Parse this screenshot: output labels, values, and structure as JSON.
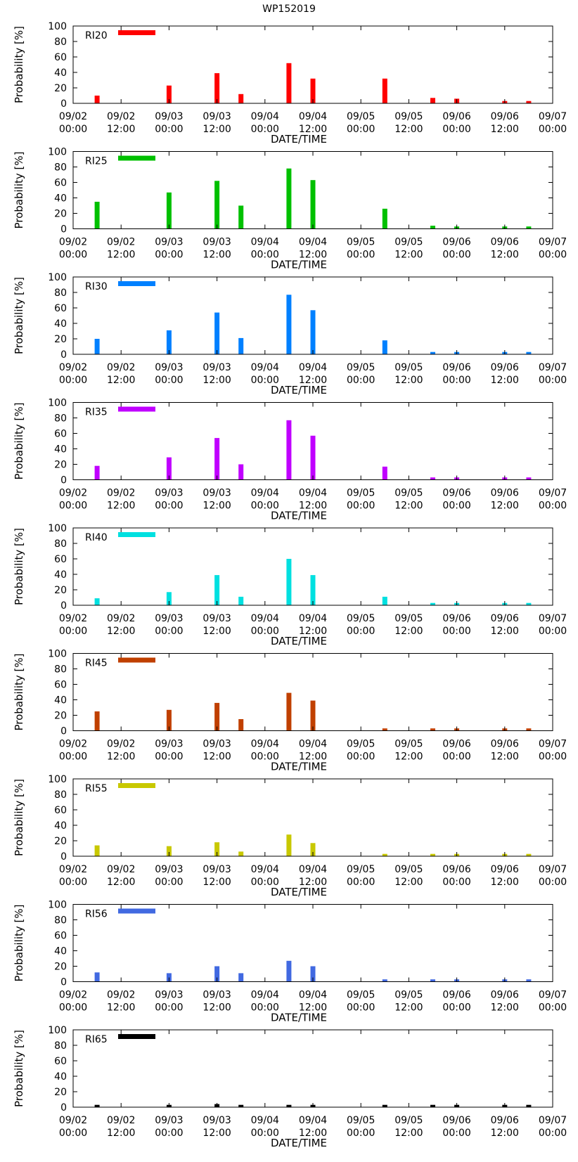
{
  "title": "WP152019",
  "chart_data": [
    {
      "type": "bar",
      "series_name": "RI20",
      "color": "#ff0000",
      "x": [
        "09/02 06:00",
        "09/03 00:00",
        "09/03 12:00",
        "09/03 18:00",
        "09/04 06:00",
        "09/04 12:00",
        "09/05 06:00",
        "09/05 18:00",
        "09/06 00:00",
        "09/06 12:00",
        "09/06 18:00"
      ],
      "values": [
        10,
        23,
        39,
        12,
        52,
        32,
        32,
        7,
        6,
        3,
        3
      ],
      "xlabel": "DATE/TIME",
      "ylabel": "Probability [%]",
      "ylim": [
        0,
        100
      ]
    },
    {
      "type": "bar",
      "series_name": "RI25",
      "color": "#00c000",
      "x": [
        "09/02 06:00",
        "09/03 00:00",
        "09/03 12:00",
        "09/03 18:00",
        "09/04 06:00",
        "09/04 12:00",
        "09/05 06:00",
        "09/05 18:00",
        "09/06 00:00",
        "09/06 12:00",
        "09/06 18:00"
      ],
      "values": [
        35,
        47,
        62,
        30,
        78,
        63,
        26,
        4,
        3,
        3,
        3
      ],
      "xlabel": "DATE/TIME",
      "ylabel": "Probability [%]",
      "ylim": [
        0,
        100
      ]
    },
    {
      "type": "bar",
      "series_name": "RI30",
      "color": "#0080ff",
      "x": [
        "09/02 06:00",
        "09/03 00:00",
        "09/03 12:00",
        "09/03 18:00",
        "09/04 06:00",
        "09/04 12:00",
        "09/05 06:00",
        "09/05 18:00",
        "09/06 00:00",
        "09/06 12:00",
        "09/06 18:00"
      ],
      "values": [
        20,
        31,
        54,
        21,
        77,
        57,
        18,
        3,
        3,
        3,
        3
      ],
      "xlabel": "DATE/TIME",
      "ylabel": "Probability [%]",
      "ylim": [
        0,
        100
      ]
    },
    {
      "type": "bar",
      "series_name": "RI35",
      "color": "#c000ff",
      "x": [
        "09/02 06:00",
        "09/03 00:00",
        "09/03 12:00",
        "09/03 18:00",
        "09/04 06:00",
        "09/04 12:00",
        "09/05 06:00",
        "09/05 18:00",
        "09/06 00:00",
        "09/06 12:00",
        "09/06 18:00"
      ],
      "values": [
        18,
        29,
        54,
        20,
        77,
        57,
        17,
        3,
        3,
        3,
        3
      ],
      "xlabel": "DATE/TIME",
      "ylabel": "Probability [%]",
      "ylim": [
        0,
        100
      ]
    },
    {
      "type": "bar",
      "series_name": "RI40",
      "color": "#00e0e0",
      "x": [
        "09/02 06:00",
        "09/03 00:00",
        "09/03 12:00",
        "09/03 18:00",
        "09/04 06:00",
        "09/04 12:00",
        "09/05 06:00",
        "09/05 18:00",
        "09/06 00:00",
        "09/06 12:00",
        "09/06 18:00"
      ],
      "values": [
        9,
        17,
        39,
        11,
        60,
        39,
        11,
        3,
        3,
        3,
        3
      ],
      "xlabel": "DATE/TIME",
      "ylabel": "Probability [%]",
      "ylim": [
        0,
        100
      ]
    },
    {
      "type": "bar",
      "series_name": "RI45",
      "color": "#c04000",
      "x": [
        "09/02 06:00",
        "09/03 00:00",
        "09/03 12:00",
        "09/03 18:00",
        "09/04 06:00",
        "09/04 12:00",
        "09/05 06:00",
        "09/05 18:00",
        "09/06 00:00",
        "09/06 12:00",
        "09/06 18:00"
      ],
      "values": [
        25,
        27,
        36,
        15,
        49,
        39,
        3,
        3,
        3,
        3,
        3
      ],
      "xlabel": "DATE/TIME",
      "ylabel": "Probability [%]",
      "ylim": [
        0,
        100
      ]
    },
    {
      "type": "bar",
      "series_name": "RI55",
      "color": "#c8c800",
      "x": [
        "09/02 06:00",
        "09/03 00:00",
        "09/03 12:00",
        "09/03 18:00",
        "09/04 06:00",
        "09/04 12:00",
        "09/05 06:00",
        "09/05 18:00",
        "09/06 00:00",
        "09/06 12:00",
        "09/06 18:00"
      ],
      "values": [
        14,
        13,
        18,
        6,
        28,
        17,
        3,
        3,
        3,
        3,
        3
      ],
      "xlabel": "DATE/TIME",
      "ylabel": "Probability [%]",
      "ylim": [
        0,
        100
      ]
    },
    {
      "type": "bar",
      "series_name": "RI56",
      "color": "#4169e1",
      "x": [
        "09/02 06:00",
        "09/03 00:00",
        "09/03 12:00",
        "09/03 18:00",
        "09/04 06:00",
        "09/04 12:00",
        "09/05 06:00",
        "09/05 18:00",
        "09/06 00:00",
        "09/06 12:00",
        "09/06 18:00"
      ],
      "values": [
        12,
        11,
        20,
        11,
        27,
        20,
        3,
        3,
        3,
        3,
        3
      ],
      "xlabel": "DATE/TIME",
      "ylabel": "Probability [%]",
      "ylim": [
        0,
        100
      ]
    },
    {
      "type": "bar",
      "series_name": "RI65",
      "color": "#000000",
      "x": [
        "09/02 06:00",
        "09/03 00:00",
        "09/03 12:00",
        "09/03 18:00",
        "09/04 06:00",
        "09/04 12:00",
        "09/05 06:00",
        "09/05 18:00",
        "09/06 00:00",
        "09/06 12:00",
        "09/06 18:00"
      ],
      "values": [
        3,
        3,
        4,
        3,
        3,
        3,
        3,
        3,
        3,
        3,
        3
      ],
      "xlabel": "DATE/TIME",
      "ylabel": "Probability [%]",
      "ylim": [
        0,
        100
      ]
    }
  ],
  "axes": {
    "yticks": [
      0,
      20,
      40,
      60,
      80,
      100
    ],
    "xticks": [
      {
        "date": "09/02",
        "time": "00:00"
      },
      {
        "date": "09/02",
        "time": "12:00"
      },
      {
        "date": "09/03",
        "time": "00:00"
      },
      {
        "date": "09/03",
        "time": "12:00"
      },
      {
        "date": "09/04",
        "time": "00:00"
      },
      {
        "date": "09/04",
        "time": "12:00"
      },
      {
        "date": "09/05",
        "time": "00:00"
      },
      {
        "date": "09/05",
        "time": "12:00"
      },
      {
        "date": "09/06",
        "time": "00:00"
      },
      {
        "date": "09/06",
        "time": "12:00"
      },
      {
        "date": "09/07",
        "time": "00:00"
      }
    ],
    "x_start": "09/02 00:00",
    "x_end": "09/07 00:00"
  }
}
